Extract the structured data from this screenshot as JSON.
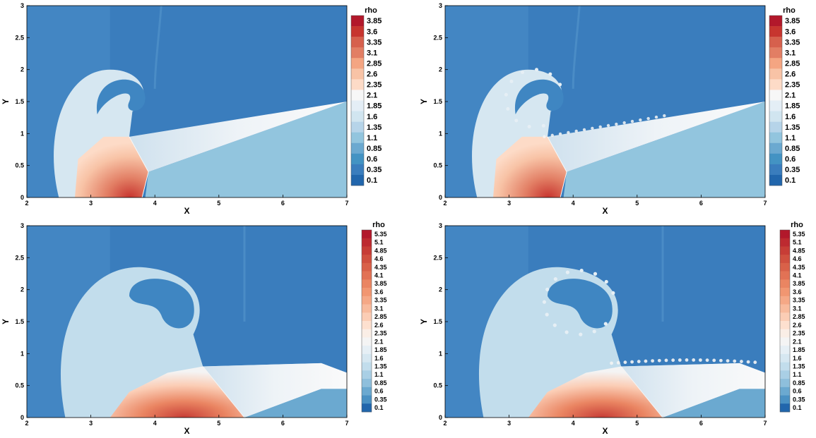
{
  "chart_data": [
    {
      "type": "heatmap",
      "panel": "top-left",
      "variable": "rho",
      "xlabel": "X",
      "ylabel": "Y",
      "xlim": [
        2,
        7
      ],
      "ylim": [
        0,
        3
      ],
      "x_ticks": [
        "2",
        "3",
        "4",
        "5",
        "6",
        "7"
      ],
      "y_ticks": [
        "0",
        "0.5",
        "1",
        "1.5",
        "2",
        "2.5",
        "3"
      ],
      "colorbar": {
        "title": "rho",
        "levels": [
          "3.85",
          "3.6",
          "3.35",
          "3.1",
          "2.85",
          "2.6",
          "2.35",
          "2.1",
          "1.85",
          "1.6",
          "1.35",
          "1.1",
          "0.85",
          "0.6",
          "0.35",
          "0.1"
        ],
        "colors": [
          "#b2182b",
          "#c7352f",
          "#d6604d",
          "#e27e64",
          "#f4a582",
          "#f8c3a6",
          "#fddbc7",
          "#f7f7f7",
          "#e4eef6",
          "#d1e5f0",
          "#b6d4e9",
          "#92c5de",
          "#6ba9d0",
          "#4393c3",
          "#3a7dbd",
          "#2166ac"
        ]
      }
    },
    {
      "type": "heatmap",
      "panel": "top-right",
      "variable": "rho",
      "xlabel": "X",
      "ylabel": "Y",
      "xlim": [
        2,
        7
      ],
      "ylim": [
        0,
        3
      ],
      "x_ticks": [
        "2",
        "3",
        "4",
        "5",
        "6",
        "7"
      ],
      "y_ticks": [
        "0",
        "0.5",
        "1",
        "1.5",
        "2",
        "2.5",
        "3"
      ],
      "colorbar": {
        "title": "rho",
        "levels": [
          "3.85",
          "3.6",
          "3.35",
          "3.1",
          "2.85",
          "2.6",
          "2.35",
          "2.1",
          "1.85",
          "1.6",
          "1.35",
          "1.1",
          "0.85",
          "0.6",
          "0.35",
          "0.1"
        ],
        "colors": [
          "#b2182b",
          "#c7352f",
          "#d6604d",
          "#e27e64",
          "#f4a582",
          "#f8c3a6",
          "#fddbc7",
          "#f7f7f7",
          "#e4eef6",
          "#d1e5f0",
          "#b6d4e9",
          "#92c5de",
          "#6ba9d0",
          "#4393c3",
          "#3a7dbd",
          "#2166ac"
        ]
      }
    },
    {
      "type": "heatmap",
      "panel": "bottom-left",
      "variable": "rho",
      "xlabel": "X",
      "ylabel": "Y",
      "xlim": [
        2,
        7
      ],
      "ylim": [
        0,
        3
      ],
      "x_ticks": [
        "2",
        "3",
        "4",
        "5",
        "6",
        "7"
      ],
      "y_ticks": [
        "0",
        "0.5",
        "1",
        "1.5",
        "2",
        "2.5",
        "3"
      ],
      "colorbar": {
        "title": "rho",
        "levels": [
          "5.35",
          "5.1",
          "4.85",
          "4.6",
          "4.35",
          "4.1",
          "3.85",
          "3.6",
          "3.35",
          "3.1",
          "2.85",
          "2.6",
          "2.35",
          "2.1",
          "1.85",
          "1.6",
          "1.35",
          "1.1",
          "0.85",
          "0.6",
          "0.35",
          "0.1"
        ],
        "colors": [
          "#b2182b",
          "#bd2a30",
          "#c73d36",
          "#d0503f",
          "#d96149",
          "#e27255",
          "#ea8562",
          "#f19671",
          "#f5a886",
          "#f8bb9d",
          "#fbcdb5",
          "#fde0cf",
          "#faeee6",
          "#f4f4f4",
          "#e6eff5",
          "#d6e7f1",
          "#c2ddec",
          "#a9cfe5",
          "#8ebfdc",
          "#6ba9d0",
          "#4a91c3",
          "#2166ac"
        ]
      }
    },
    {
      "type": "heatmap",
      "panel": "bottom-right",
      "variable": "rho",
      "xlabel": "X",
      "ylabel": "Y",
      "xlim": [
        2,
        7
      ],
      "ylim": [
        0,
        3
      ],
      "x_ticks": [
        "2",
        "3",
        "4",
        "5",
        "6",
        "7"
      ],
      "y_ticks": [
        "0",
        "0.5",
        "1",
        "1.5",
        "2",
        "2.5",
        "3"
      ],
      "colorbar": {
        "title": "rho",
        "levels": [
          "5.35",
          "5.1",
          "4.85",
          "4.6",
          "4.35",
          "4.1",
          "3.85",
          "3.6",
          "3.35",
          "3.1",
          "2.85",
          "2.6",
          "2.35",
          "2.1",
          "1.85",
          "1.6",
          "1.35",
          "1.1",
          "0.85",
          "0.6",
          "0.35",
          "0.1"
        ],
        "colors": [
          "#b2182b",
          "#bd2a30",
          "#c73d36",
          "#d0503f",
          "#d96149",
          "#e27255",
          "#ea8562",
          "#f19671",
          "#f5a886",
          "#f8bb9d",
          "#fbcdb5",
          "#fde0cf",
          "#faeee6",
          "#f4f4f4",
          "#e6eff5",
          "#d6e7f1",
          "#c2ddec",
          "#a9cfe5",
          "#8ebfdc",
          "#6ba9d0",
          "#4a91c3",
          "#2166ac"
        ]
      }
    }
  ]
}
